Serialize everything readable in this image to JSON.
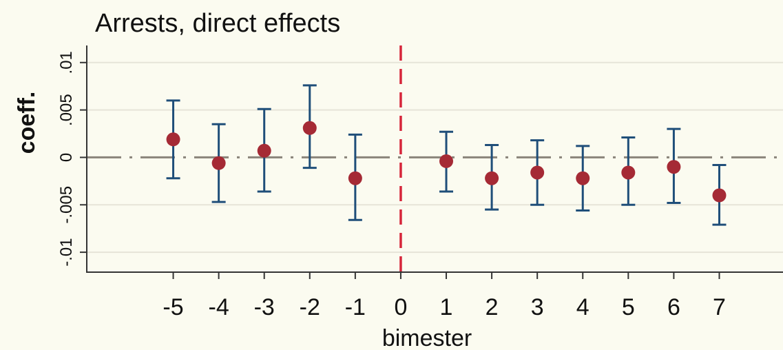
{
  "chart_data": {
    "type": "scatter",
    "title": "Arrests, direct effects",
    "xlabel": "bimester",
    "ylabel": "coeff.",
    "x_ticks": [
      "-5",
      "-4",
      "-3",
      "-2",
      "-1",
      "0",
      "1",
      "2",
      "3",
      "4",
      "5",
      "6",
      "7"
    ],
    "y_ticks": [
      {
        "value": -0.01,
        "label": "-.01"
      },
      {
        "value": -0.005,
        "label": "-.005"
      },
      {
        "value": 0,
        "label": "0"
      },
      {
        "value": 0.005,
        "label": ".005"
      },
      {
        "value": 0.01,
        "label": ".01"
      }
    ],
    "xlim": [
      -6.9,
      8.4
    ],
    "ylim": [
      -0.0121,
      0.0118
    ],
    "event_line_x": 0,
    "series": [
      {
        "points": [
          {
            "x": -5,
            "y": 0.0019,
            "lo": -0.0022,
            "hi": 0.006
          },
          {
            "x": -4,
            "y": -0.0006,
            "lo": -0.0047,
            "hi": 0.0035
          },
          {
            "x": -3,
            "y": 0.0007,
            "lo": -0.0036,
            "hi": 0.0051
          },
          {
            "x": -2,
            "y": 0.0031,
            "lo": -0.0011,
            "hi": 0.0076
          },
          {
            "x": -1,
            "y": -0.0022,
            "lo": -0.0066,
            "hi": 0.0024
          },
          {
            "x": 1,
            "y": -0.0004,
            "lo": -0.0036,
            "hi": 0.0027
          },
          {
            "x": 2,
            "y": -0.0022,
            "lo": -0.0055,
            "hi": 0.0013
          },
          {
            "x": 3,
            "y": -0.0016,
            "lo": -0.005,
            "hi": 0.0018
          },
          {
            "x": 4,
            "y": -0.0022,
            "lo": -0.0056,
            "hi": 0.0012
          },
          {
            "x": 5,
            "y": -0.0016,
            "lo": -0.005,
            "hi": 0.0021
          },
          {
            "x": 6,
            "y": -0.001,
            "lo": -0.0048,
            "hi": 0.003
          },
          {
            "x": 7,
            "y": -0.004,
            "lo": -0.0071,
            "hi": -0.0008
          }
        ]
      }
    ],
    "grid": true,
    "colors": {
      "background": "#fbfbf0",
      "point": "#a52a35",
      "errorbar": "#1f4e79",
      "event_line": "#d6253a",
      "zero_line": "#8a847a",
      "grid": "#e6e4d8"
    }
  }
}
